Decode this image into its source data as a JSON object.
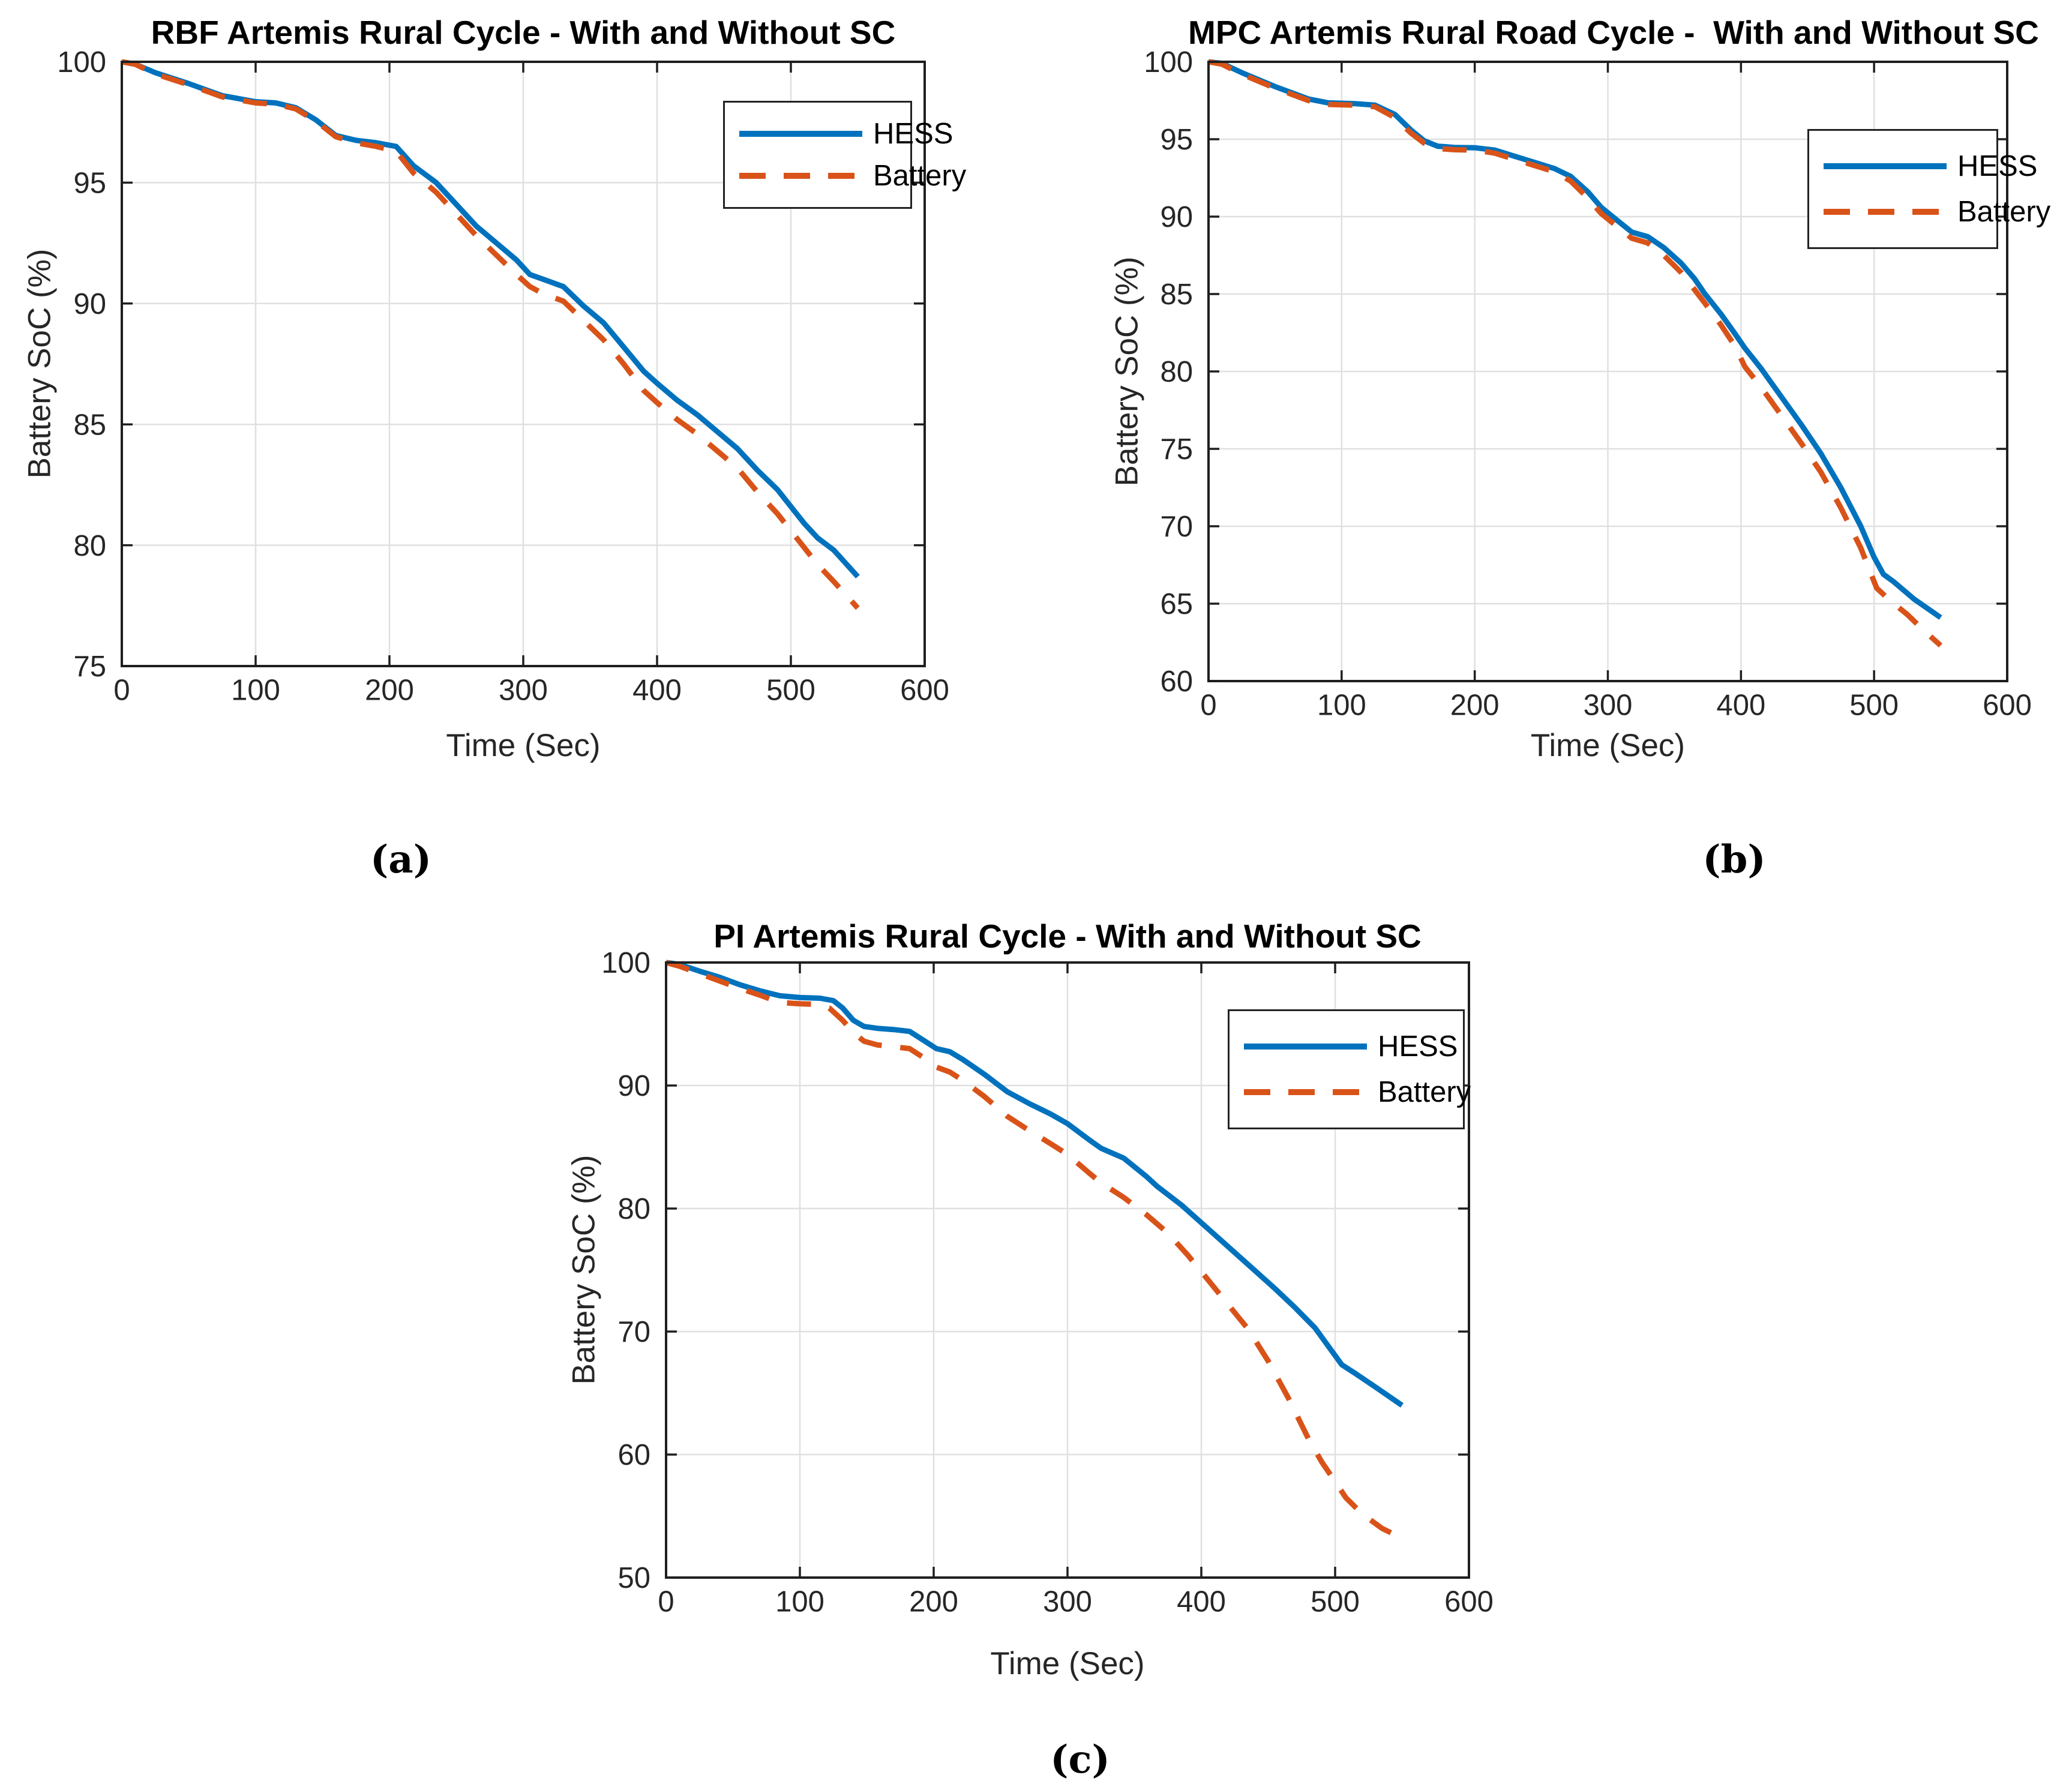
{
  "figure": {
    "background": "#ffffff",
    "description_visible_text_only": true
  },
  "colors": {
    "hess_line": "#0072BD",
    "battery_line": "#D95319",
    "gridline": "#E0E0E0",
    "axis": "#1f1f1f",
    "text": "#262626",
    "title_text": "#000000"
  },
  "chart_data": [
    {
      "id": "a",
      "type": "line",
      "title": "RBF Artemis Rural Cycle - With and Without SC",
      "xlabel": "Time (Sec)",
      "ylabel": "Battery SoC (%)",
      "sublabel": "(a)",
      "xlim": [
        0,
        600
      ],
      "ylim": [
        75,
        100
      ],
      "xticks": [
        0,
        100,
        200,
        300,
        400,
        500,
        600
      ],
      "yticks": [
        75,
        80,
        85,
        90,
        95,
        100
      ],
      "grid": true,
      "legend_position": "top-right",
      "legend_labels": [
        "HESS",
        "Battery"
      ],
      "series": [
        {
          "name": "HESS",
          "style": "solid",
          "color": "#0072BD",
          "points": [
            [
              0,
              100
            ],
            [
              10,
              99.9
            ],
            [
              25,
              99.55
            ],
            [
              50,
              99.1
            ],
            [
              75,
              98.6
            ],
            [
              100,
              98.35
            ],
            [
              115,
              98.3
            ],
            [
              130,
              98.1
            ],
            [
              145,
              97.6
            ],
            [
              160,
              96.95
            ],
            [
              175,
              96.75
            ],
            [
              190,
              96.65
            ],
            [
              205,
              96.5
            ],
            [
              218,
              95.7
            ],
            [
              235,
              95.0
            ],
            [
              250,
              94.1
            ],
            [
              265,
              93.2
            ],
            [
              280,
              92.5
            ],
            [
              295,
              91.8
            ],
            [
              305,
              91.2
            ],
            [
              315,
              91.0
            ],
            [
              330,
              90.7
            ],
            [
              345,
              89.9
            ],
            [
              360,
              89.2
            ],
            [
              375,
              88.2
            ],
            [
              390,
              87.2
            ],
            [
              400,
              86.7
            ],
            [
              415,
              86.0
            ],
            [
              430,
              85.4
            ],
            [
              445,
              84.7
            ],
            [
              460,
              84.0
            ],
            [
              475,
              83.1
            ],
            [
              490,
              82.3
            ],
            [
              500,
              81.6
            ],
            [
              510,
              80.9
            ],
            [
              520,
              80.3
            ],
            [
              532,
              79.8
            ],
            [
              550,
              78.7
            ]
          ]
        },
        {
          "name": "Battery",
          "style": "dashed",
          "color": "#D95319",
          "points": [
            [
              0,
              100
            ],
            [
              10,
              99.9
            ],
            [
              25,
              99.5
            ],
            [
              50,
              99.05
            ],
            [
              75,
              98.55
            ],
            [
              100,
              98.3
            ],
            [
              115,
              98.25
            ],
            [
              130,
              98.05
            ],
            [
              145,
              97.55
            ],
            [
              160,
              96.9
            ],
            [
              175,
              96.65
            ],
            [
              190,
              96.5
            ],
            [
              205,
              96.3
            ],
            [
              218,
              95.4
            ],
            [
              235,
              94.6
            ],
            [
              250,
              93.7
            ],
            [
              265,
              92.8
            ],
            [
              280,
              92.0
            ],
            [
              295,
              91.2
            ],
            [
              305,
              90.7
            ],
            [
              315,
              90.4
            ],
            [
              330,
              90.1
            ],
            [
              345,
              89.3
            ],
            [
              360,
              88.5
            ],
            [
              375,
              87.5
            ],
            [
              390,
              86.4
            ],
            [
              400,
              85.9
            ],
            [
              415,
              85.2
            ],
            [
              430,
              84.6
            ],
            [
              445,
              83.9
            ],
            [
              460,
              83.2
            ],
            [
              475,
              82.2
            ],
            [
              490,
              81.3
            ],
            [
              500,
              80.6
            ],
            [
              510,
              79.9
            ],
            [
              520,
              79.2
            ],
            [
              532,
              78.5
            ],
            [
              550,
              77.4
            ]
          ]
        }
      ]
    },
    {
      "id": "b",
      "type": "line",
      "title": "MPC Artemis Rural Road Cycle -  With and Without SC",
      "xlabel": "Time (Sec)",
      "ylabel": "Battery SoC (%)",
      "sublabel": "(b)",
      "xlim": [
        0,
        600
      ],
      "ylim": [
        60,
        100
      ],
      "xticks": [
        0,
        100,
        200,
        300,
        400,
        500,
        600
      ],
      "yticks": [
        60,
        65,
        70,
        75,
        80,
        85,
        90,
        95,
        100
      ],
      "grid": true,
      "legend_position": "top-right",
      "legend_labels": [
        "HESS",
        "Battery"
      ],
      "series": [
        {
          "name": "HESS",
          "style": "solid",
          "color": "#0072BD",
          "points": [
            [
              0,
              100
            ],
            [
              10,
              99.9
            ],
            [
              25,
              99.3
            ],
            [
              50,
              98.4
            ],
            [
              75,
              97.6
            ],
            [
              90,
              97.35
            ],
            [
              110,
              97.3
            ],
            [
              125,
              97.2
            ],
            [
              140,
              96.6
            ],
            [
              152,
              95.6
            ],
            [
              162,
              94.9
            ],
            [
              172,
              94.55
            ],
            [
              185,
              94.47
            ],
            [
              200,
              94.45
            ],
            [
              215,
              94.3
            ],
            [
              230,
              93.9
            ],
            [
              245,
              93.5
            ],
            [
              260,
              93.1
            ],
            [
              272,
              92.6
            ],
            [
              285,
              91.6
            ],
            [
              295,
              90.6
            ],
            [
              305,
              89.9
            ],
            [
              318,
              89.0
            ],
            [
              330,
              88.7
            ],
            [
              342,
              88.0
            ],
            [
              355,
              87.0
            ],
            [
              365,
              86.0
            ],
            [
              373,
              85.0
            ],
            [
              385,
              83.7
            ],
            [
              395,
              82.5
            ],
            [
              403,
              81.5
            ],
            [
              415,
              80.2
            ],
            [
              430,
              78.4
            ],
            [
              445,
              76.6
            ],
            [
              460,
              74.7
            ],
            [
              475,
              72.5
            ],
            [
              490,
              70.0
            ],
            [
              500,
              68.0
            ],
            [
              507,
              66.9
            ],
            [
              515,
              66.4
            ],
            [
              530,
              65.3
            ],
            [
              550,
              64.1
            ]
          ]
        },
        {
          "name": "Battery",
          "style": "dashed",
          "color": "#D95319",
          "points": [
            [
              0,
              100
            ],
            [
              10,
              99.85
            ],
            [
              25,
              99.2
            ],
            [
              50,
              98.3
            ],
            [
              75,
              97.5
            ],
            [
              90,
              97.25
            ],
            [
              110,
              97.2
            ],
            [
              125,
              97.1
            ],
            [
              140,
              96.4
            ],
            [
              152,
              95.4
            ],
            [
              162,
              94.75
            ],
            [
              172,
              94.4
            ],
            [
              185,
              94.32
            ],
            [
              200,
              94.3
            ],
            [
              215,
              94.1
            ],
            [
              230,
              93.7
            ],
            [
              245,
              93.3
            ],
            [
              260,
              92.9
            ],
            [
              272,
              92.3
            ],
            [
              285,
              91.2
            ],
            [
              295,
              90.2
            ],
            [
              305,
              89.5
            ],
            [
              318,
              88.6
            ],
            [
              330,
              88.3
            ],
            [
              342,
              87.5
            ],
            [
              355,
              86.4
            ],
            [
              365,
              85.3
            ],
            [
              373,
              84.4
            ],
            [
              385,
              83.0
            ],
            [
              395,
              81.7
            ],
            [
              403,
              80.3
            ],
            [
              415,
              79.0
            ],
            [
              430,
              77.2
            ],
            [
              445,
              75.4
            ],
            [
              460,
              73.5
            ],
            [
              475,
              71.2
            ],
            [
              490,
              68.6
            ],
            [
              495,
              67.5
            ],
            [
              502,
              66.0
            ],
            [
              512,
              65.2
            ],
            [
              525,
              64.3
            ],
            [
              537,
              63.3
            ],
            [
              550,
              62.3
            ]
          ]
        }
      ]
    },
    {
      "id": "c",
      "type": "line",
      "title": "PI Artemis Rural Cycle - With and Without SC",
      "xlabel": "Time (Sec)",
      "ylabel": "Battery SoC (%)",
      "sublabel": "(c)",
      "xlim": [
        0,
        600
      ],
      "ylim": [
        50,
        100
      ],
      "xticks": [
        0,
        100,
        200,
        300,
        400,
        500,
        600
      ],
      "yticks": [
        50,
        60,
        70,
        80,
        90,
        100
      ],
      "grid": true,
      "legend_position": "top-right",
      "legend_labels": [
        "HESS",
        "Battery"
      ],
      "series": [
        {
          "name": "HESS",
          "style": "solid",
          "color": "#0072BD",
          "points": [
            [
              0,
              100
            ],
            [
              10,
              99.85
            ],
            [
              25,
              99.3
            ],
            [
              40,
              98.8
            ],
            [
              55,
              98.2
            ],
            [
              70,
              97.7
            ],
            [
              85,
              97.3
            ],
            [
              100,
              97.15
            ],
            [
              115,
              97.1
            ],
            [
              125,
              96.9
            ],
            [
              132,
              96.3
            ],
            [
              140,
              95.3
            ],
            [
              148,
              94.8
            ],
            [
              158,
              94.65
            ],
            [
              170,
              94.55
            ],
            [
              182,
              94.4
            ],
            [
              192,
              93.7
            ],
            [
              202,
              93.0
            ],
            [
              212,
              92.75
            ],
            [
              222,
              92.1
            ],
            [
              238,
              90.9
            ],
            [
              255,
              89.5
            ],
            [
              272,
              88.5
            ],
            [
              287,
              87.7
            ],
            [
              300,
              86.9
            ],
            [
              316,
              85.6
            ],
            [
              325,
              84.9
            ],
            [
              342,
              84.1
            ],
            [
              359,
              82.6
            ],
            [
              367,
              81.8
            ],
            [
              385,
              80.3
            ],
            [
              402,
              78.65
            ],
            [
              420,
              76.9
            ],
            [
              437,
              75.25
            ],
            [
              455,
              73.5
            ],
            [
              470,
              71.95
            ],
            [
              485,
              70.3
            ],
            [
              495,
              68.8
            ],
            [
              505,
              67.3
            ],
            [
              515,
              66.6
            ],
            [
              530,
              65.5
            ],
            [
              550,
              64.0
            ]
          ]
        },
        {
          "name": "Battery",
          "style": "dashed",
          "color": "#D95319",
          "points": [
            [
              0,
              100
            ],
            [
              10,
              99.7
            ],
            [
              25,
              99.1
            ],
            [
              40,
              98.5
            ],
            [
              55,
              97.9
            ],
            [
              70,
              97.35
            ],
            [
              85,
              96.75
            ],
            [
              100,
              96.65
            ],
            [
              112,
              96.6
            ],
            [
              122,
              96.3
            ],
            [
              132,
              95.3
            ],
            [
              140,
              94.3
            ],
            [
              148,
              93.6
            ],
            [
              158,
              93.3
            ],
            [
              170,
              93.15
            ],
            [
              182,
              93.0
            ],
            [
              192,
              92.3
            ],
            [
              202,
              91.5
            ],
            [
              212,
              91.1
            ],
            [
              222,
              90.4
            ],
            [
              238,
              89.1
            ],
            [
              255,
              87.5
            ],
            [
              272,
              86.3
            ],
            [
              287,
              85.3
            ],
            [
              300,
              84.4
            ],
            [
              316,
              82.9
            ],
            [
              325,
              82.1
            ],
            [
              342,
              80.9
            ],
            [
              359,
              79.5
            ],
            [
              375,
              78.0
            ],
            [
              390,
              76.2
            ],
            [
              405,
              74.2
            ],
            [
              420,
              72.2
            ],
            [
              435,
              70.2
            ],
            [
              450,
              67.6
            ],
            [
              465,
              64.6
            ],
            [
              480,
              61.3
            ],
            [
              490,
              59.4
            ],
            [
              500,
              57.8
            ],
            [
              508,
              56.5
            ],
            [
              520,
              55.2
            ],
            [
              535,
              54.0
            ],
            [
              550,
              53.2
            ]
          ]
        }
      ]
    }
  ]
}
